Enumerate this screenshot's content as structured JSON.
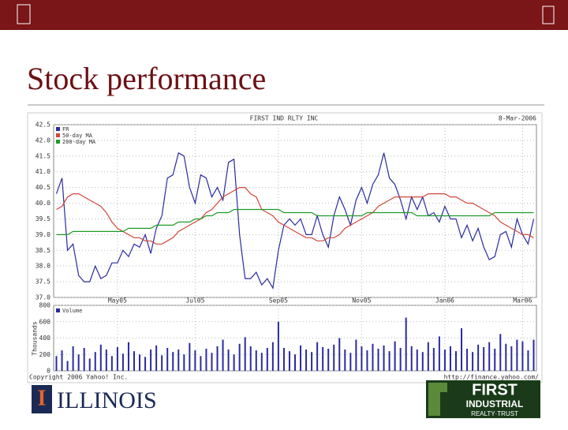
{
  "slide": {
    "title": "Stock performance",
    "logo_left": {
      "mark": "I",
      "name": "ILLINOIS"
    },
    "logo_right": {
      "line1": "FIRST",
      "line2": "INDUSTRIAL",
      "line3": "REALTY·TRUST"
    }
  },
  "chart_data": [
    {
      "type": "line",
      "title": "FIRST IND RLTY INC",
      "date": "8-Mar-2006",
      "categories": [
        null,
        null,
        null,
        null,
        null,
        null,
        null,
        null,
        null,
        null,
        null,
        "May05",
        null,
        null,
        null,
        null,
        null,
        null,
        null,
        null,
        null,
        null,
        null,
        null,
        null,
        "Jul05",
        null,
        null,
        null,
        null,
        null,
        null,
        null,
        null,
        null,
        null,
        null,
        null,
        null,
        null,
        "Sep05",
        null,
        null,
        null,
        null,
        null,
        null,
        null,
        null,
        null,
        null,
        null,
        null,
        null,
        null,
        "Nov05",
        null,
        null,
        null,
        null,
        null,
        null,
        null,
        null,
        null,
        null,
        null,
        null,
        null,
        null,
        "Jan06",
        null,
        null,
        null,
        null,
        null,
        null,
        null,
        null,
        null,
        null,
        null,
        null,
        null,
        "Mar06",
        null,
        null
      ],
      "series": [
        {
          "name": "FR",
          "color": "#2a2aa0",
          "values": [
            40.3,
            40.8,
            38.5,
            38.7,
            37.7,
            37.5,
            37.5,
            38.0,
            37.6,
            37.7,
            38.1,
            38.1,
            38.5,
            38.3,
            38.7,
            38.6,
            39.0,
            38.4,
            39.2,
            39.6,
            40.8,
            40.9,
            41.6,
            41.5,
            40.5,
            40.0,
            40.9,
            40.8,
            40.2,
            40.5,
            40.1,
            41.3,
            41.4,
            39.0,
            37.6,
            37.6,
            37.8,
            37.4,
            37.6,
            37.3,
            38.5,
            39.3,
            39.5,
            39.3,
            39.5,
            39.0,
            39.0,
            39.6,
            39.0,
            38.6,
            39.6,
            40.2,
            39.8,
            39.3,
            40.1,
            40.5,
            40.0,
            40.6,
            40.9,
            41.6,
            40.8,
            40.6,
            40.1,
            39.5,
            40.2,
            39.8,
            40.2,
            39.6,
            39.7,
            39.4,
            39.9,
            39.5,
            39.5,
            38.9,
            39.3,
            38.8,
            39.2,
            38.6,
            38.2,
            38.3,
            39.0,
            39.1,
            38.6,
            39.5,
            39.0,
            38.7,
            39.5
          ]
        },
        {
          "name": "50-day MA",
          "color": "#d0463a",
          "values": [
            39.8,
            39.9,
            40.2,
            40.3,
            40.3,
            40.2,
            40.1,
            40.0,
            39.9,
            39.7,
            39.4,
            39.2,
            39.1,
            39.0,
            38.9,
            38.9,
            38.8,
            38.8,
            38.7,
            38.7,
            38.8,
            38.9,
            39.1,
            39.2,
            39.3,
            39.4,
            39.5,
            39.7,
            39.8,
            40.0,
            40.2,
            40.3,
            40.4,
            40.5,
            40.5,
            40.3,
            40.2,
            39.8,
            39.7,
            39.6,
            39.4,
            39.3,
            39.2,
            39.1,
            39.0,
            38.9,
            38.9,
            38.8,
            38.8,
            38.9,
            38.9,
            39.0,
            39.2,
            39.3,
            39.4,
            39.5,
            39.6,
            39.7,
            39.9,
            40.0,
            40.1,
            40.2,
            40.2,
            40.2,
            40.2,
            40.2,
            40.2,
            40.3,
            40.3,
            40.3,
            40.3,
            40.2,
            40.2,
            40.1,
            40.0,
            40.0,
            39.9,
            39.8,
            39.7,
            39.6,
            39.4,
            39.3,
            39.2,
            39.1,
            39.0,
            39.0,
            38.9
          ]
        },
        {
          "name": "200-day MA",
          "color": "#1e9a2a",
          "values": [
            39.0,
            39.0,
            39.0,
            39.1,
            39.1,
            39.1,
            39.1,
            39.1,
            39.1,
            39.1,
            39.1,
            39.1,
            39.1,
            39.2,
            39.2,
            39.2,
            39.2,
            39.2,
            39.3,
            39.3,
            39.3,
            39.3,
            39.4,
            39.4,
            39.4,
            39.5,
            39.5,
            39.6,
            39.6,
            39.7,
            39.7,
            39.7,
            39.8,
            39.8,
            39.8,
            39.8,
            39.8,
            39.8,
            39.8,
            39.8,
            39.8,
            39.7,
            39.7,
            39.7,
            39.7,
            39.7,
            39.7,
            39.6,
            39.6,
            39.6,
            39.6,
            39.6,
            39.6,
            39.6,
            39.6,
            39.6,
            39.7,
            39.7,
            39.7,
            39.7,
            39.7,
            39.7,
            39.7,
            39.7,
            39.7,
            39.6,
            39.6,
            39.6,
            39.6,
            39.6,
            39.6,
            39.6,
            39.6,
            39.6,
            39.6,
            39.6,
            39.6,
            39.6,
            39.6,
            39.7,
            39.7,
            39.7,
            39.7,
            39.7,
            39.7,
            39.7,
            39.7
          ]
        }
      ],
      "ylim": [
        37,
        42.5
      ],
      "yticks": [
        {
          "value": 37,
          "label": "37.0"
        },
        37.5,
        {
          "value": 38,
          "label": "38.0"
        },
        38.5,
        {
          "value": 39,
          "label": "39.0"
        },
        39.5,
        {
          "value": 40,
          "label": "40.0"
        },
        40.5,
        {
          "value": 41,
          "label": "41.0"
        },
        41.5,
        {
          "value": 42,
          "label": "42.0"
        },
        42.5
      ],
      "grid": true,
      "legend": "upper left"
    },
    {
      "type": "bar",
      "ylabel": "Thousands",
      "name": "Volume",
      "color": "#2a2aa0",
      "values": [
        180,
        250,
        120,
        300,
        200,
        280,
        150,
        230,
        320,
        260,
        180,
        290,
        210,
        350,
        240,
        200,
        170,
        260,
        310,
        190,
        280,
        230,
        260,
        200,
        340,
        250,
        180,
        270,
        220,
        300,
        380,
        260,
        200,
        330,
        410,
        300,
        250,
        220,
        280,
        350,
        600,
        280,
        240,
        200,
        310,
        260,
        230,
        350,
        290,
        270,
        320,
        400,
        260,
        220,
        380,
        300,
        250,
        330,
        270,
        310,
        240,
        360,
        280,
        650,
        300,
        260,
        230,
        350,
        280,
        420,
        260,
        300,
        240,
        520,
        270,
        230,
        320,
        290,
        350,
        270,
        450,
        330,
        300,
        380,
        360,
        250,
        380
      ],
      "ylim": [
        0,
        800
      ],
      "yticks": [
        0,
        200,
        400,
        600,
        800
      ],
      "grid": true,
      "copyright": "Copyright 2006 Yahoo! Inc.",
      "source": "http://finance.yahoo.com/"
    }
  ]
}
